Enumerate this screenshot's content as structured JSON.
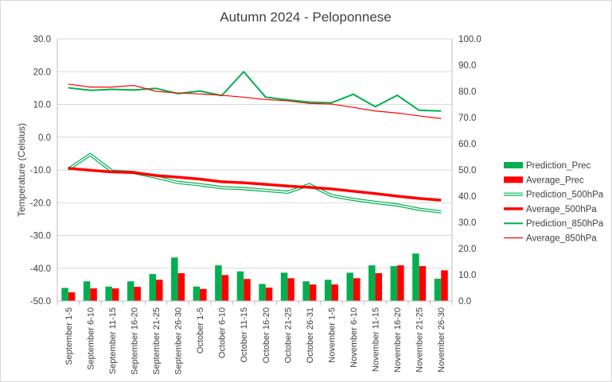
{
  "chart_data": {
    "type": "combo",
    "title": "Autumn 2024 - Peloponnese",
    "ylabel": "Temperature (Celsius)",
    "y2label": "",
    "ylim": [
      -50,
      30
    ],
    "y2lim": [
      0,
      100
    ],
    "yticks": [
      "-50.0",
      "-40.0",
      "-30.0",
      "-20.0",
      "-10.0",
      "0.0",
      "10.0",
      "20.0",
      "30.0"
    ],
    "y2ticks": [
      "0.0",
      "10.0",
      "20.0",
      "30.0",
      "40.0",
      "50.0",
      "60.0",
      "70.0",
      "80.0",
      "90.0",
      "100.0"
    ],
    "categories": [
      "September 1-5",
      "September 6-10",
      "September 11-15",
      "September 16-20",
      "September 21-25",
      "September 26-30",
      "October 1-5",
      "October 6-10",
      "October 11-15",
      "October 16-20",
      "October 21-25",
      "October 26-31",
      "November 1-5",
      "November 6-10",
      "November 11-15",
      "November 16-20",
      "November 21-25",
      "November 26-30"
    ],
    "legend_position": "right",
    "series": [
      {
        "name": "Prediction_Prec",
        "kind": "bar",
        "axis": "secondary",
        "color": "#00b050",
        "values": [
          5,
          7.5,
          5.5,
          7.5,
          10.3,
          16.6,
          5.5,
          13.6,
          11.3,
          6.5,
          10.8,
          7.5,
          8.1,
          10.8,
          13.6,
          13.3,
          18.1,
          8.5
        ]
      },
      {
        "name": "Average_Prec",
        "kind": "bar",
        "axis": "secondary",
        "color": "#ff0000",
        "values": [
          3.3,
          4.8,
          4.8,
          5.4,
          8.1,
          10.6,
          4.6,
          9.9,
          8.4,
          5.1,
          8.7,
          6.3,
          6.3,
          8.7,
          10.6,
          13.6,
          13.3,
          11.7
        ]
      },
      {
        "name": "Prediction_500hPa",
        "kind": "line",
        "axis": "primary",
        "color": "#00b050",
        "style": "double",
        "values": [
          -9.8,
          -5.3,
          -10.4,
          -10.8,
          -12.2,
          -13.8,
          -14.5,
          -15.4,
          -15.7,
          -16.2,
          -16.8,
          -14.5,
          -17.8,
          -19.0,
          -19.9,
          -20.7,
          -22.0,
          -22.8
        ]
      },
      {
        "name": "Average_500hPa",
        "kind": "line",
        "axis": "primary",
        "color": "#ff0000",
        "style": "thick",
        "values": [
          -9.5,
          -10.1,
          -10.6,
          -10.8,
          -11.7,
          -12.2,
          -12.8,
          -13.6,
          -13.9,
          -14.4,
          -14.9,
          -15.3,
          -15.8,
          -16.5,
          -17.2,
          -18.0,
          -18.7,
          -19.2
        ]
      },
      {
        "name": "Prediction_850hPa",
        "kind": "line",
        "axis": "primary",
        "color": "#00b050",
        "style": "medium",
        "values": [
          15.1,
          14.3,
          14.6,
          14.4,
          14.9,
          13.3,
          14.1,
          12.7,
          20.0,
          12.2,
          11.4,
          10.7,
          10.5,
          13.1,
          9.3,
          12.8,
          8.2,
          8.0
        ]
      },
      {
        "name": "Average_850hPa",
        "kind": "line",
        "axis": "primary",
        "color": "#ff0000",
        "style": "thin",
        "values": [
          16.2,
          15.3,
          15.3,
          15.8,
          14.0,
          13.5,
          13.2,
          12.8,
          12.2,
          11.5,
          11.1,
          10.3,
          10.1,
          9.1,
          8.0,
          7.4,
          6.5,
          5.7
        ]
      }
    ]
  }
}
